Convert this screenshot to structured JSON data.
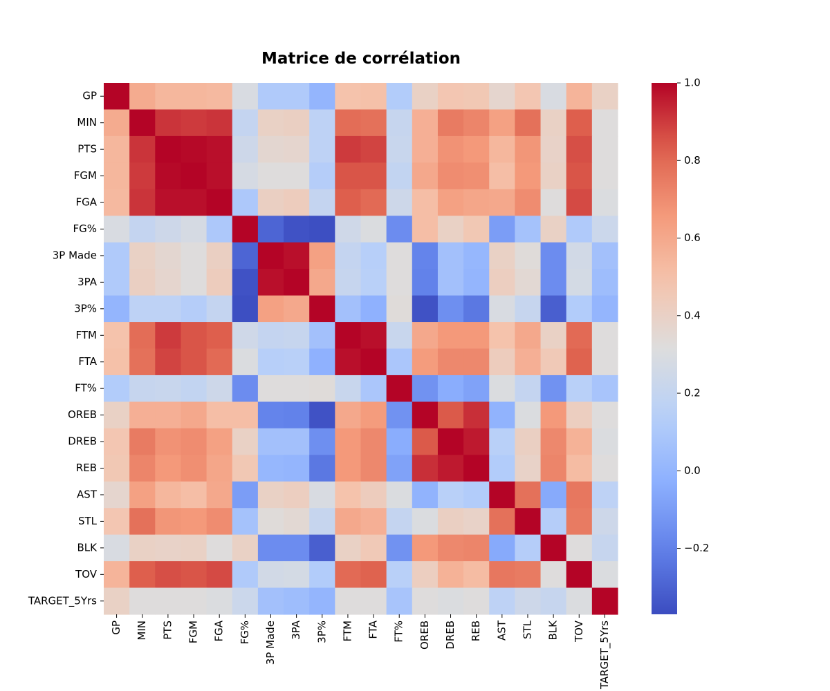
{
  "chart_data": {
    "type": "heatmap",
    "title": "Matrice de corrélation",
    "xlabel": "",
    "ylabel": "",
    "variables": [
      "GP",
      "MIN",
      "PTS",
      "FGM",
      "FGA",
      "FG%",
      "3P Made",
      "3PA",
      "3P%",
      "FTM",
      "FTA",
      "FT%",
      "OREB",
      "DREB",
      "REB",
      "AST",
      "STL",
      "BLK",
      "TOV",
      "TARGET_5Yrs"
    ],
    "colormap": "coolwarm",
    "colorbar": {
      "vmin": -0.37,
      "vmax": 1.0,
      "ticks": [
        -0.2,
        0.0,
        0.2,
        0.4,
        0.6,
        0.8,
        1.0
      ],
      "tick_labels": [
        "−0.2",
        "0.0",
        "0.2",
        "0.4",
        "0.6",
        "0.8",
        "1.0"
      ]
    },
    "values": [
      [
        1.0,
        0.59,
        0.54,
        0.54,
        0.53,
        0.29,
        0.11,
        0.11,
        0.0,
        0.49,
        0.5,
        0.12,
        0.4,
        0.47,
        0.46,
        0.37,
        0.47,
        0.29,
        0.55,
        0.4
      ],
      [
        0.59,
        1.0,
        0.91,
        0.9,
        0.91,
        0.2,
        0.4,
        0.41,
        0.17,
        0.79,
        0.78,
        0.21,
        0.57,
        0.75,
        0.72,
        0.63,
        0.78,
        0.4,
        0.83,
        0.32
      ],
      [
        0.54,
        0.91,
        1.0,
        0.99,
        0.98,
        0.24,
        0.36,
        0.37,
        0.17,
        0.9,
        0.88,
        0.22,
        0.57,
        0.68,
        0.66,
        0.54,
        0.67,
        0.39,
        0.86,
        0.32
      ],
      [
        0.54,
        0.9,
        0.99,
        1.0,
        0.98,
        0.28,
        0.32,
        0.32,
        0.13,
        0.85,
        0.85,
        0.19,
        0.6,
        0.7,
        0.69,
        0.51,
        0.66,
        0.4,
        0.85,
        0.32
      ],
      [
        0.53,
        0.91,
        0.98,
        0.98,
        1.0,
        0.1,
        0.41,
        0.43,
        0.2,
        0.83,
        0.8,
        0.24,
        0.51,
        0.63,
        0.61,
        0.6,
        0.7,
        0.32,
        0.87,
        0.3
      ],
      [
        0.29,
        0.2,
        0.24,
        0.28,
        0.1,
        1.0,
        -0.29,
        -0.35,
        -0.36,
        0.25,
        0.3,
        -0.16,
        0.51,
        0.4,
        0.46,
        -0.1,
        0.07,
        0.4,
        0.11,
        0.23
      ],
      [
        0.11,
        0.4,
        0.36,
        0.32,
        0.41,
        -0.29,
        1.0,
        0.98,
        0.63,
        0.2,
        0.14,
        0.32,
        -0.19,
        0.06,
        0.01,
        0.4,
        0.33,
        -0.16,
        0.26,
        0.06
      ],
      [
        0.11,
        0.41,
        0.37,
        0.32,
        0.43,
        -0.35,
        0.98,
        1.0,
        0.6,
        0.21,
        0.15,
        0.32,
        -0.2,
        0.06,
        0.0,
        0.42,
        0.35,
        -0.16,
        0.27,
        0.04
      ],
      [
        0.0,
        0.17,
        0.17,
        0.13,
        0.2,
        -0.36,
        0.63,
        0.6,
        1.0,
        0.06,
        -0.02,
        0.33,
        -0.35,
        -0.15,
        -0.23,
        0.29,
        0.21,
        -0.31,
        0.12,
        0.0
      ],
      [
        0.49,
        0.79,
        0.9,
        0.85,
        0.83,
        0.25,
        0.2,
        0.21,
        0.06,
        1.0,
        0.98,
        0.22,
        0.6,
        0.66,
        0.66,
        0.49,
        0.6,
        0.4,
        0.8,
        0.32
      ],
      [
        0.5,
        0.78,
        0.88,
        0.85,
        0.8,
        0.3,
        0.14,
        0.15,
        -0.02,
        0.98,
        1.0,
        0.09,
        0.65,
        0.71,
        0.71,
        0.43,
        0.57,
        0.45,
        0.82,
        0.32
      ],
      [
        0.12,
        0.21,
        0.22,
        0.19,
        0.24,
        -0.16,
        0.32,
        0.32,
        0.33,
        0.22,
        0.09,
        1.0,
        -0.14,
        -0.04,
        -0.08,
        0.3,
        0.2,
        -0.14,
        0.15,
        0.08
      ],
      [
        0.4,
        0.57,
        0.57,
        0.6,
        0.51,
        0.51,
        -0.19,
        -0.2,
        -0.35,
        0.6,
        0.65,
        -0.14,
        1.0,
        0.84,
        0.92,
        -0.01,
        0.3,
        0.66,
        0.42,
        0.32
      ],
      [
        0.47,
        0.75,
        0.68,
        0.7,
        0.63,
        0.4,
        0.06,
        0.06,
        -0.15,
        0.66,
        0.71,
        -0.04,
        0.84,
        1.0,
        0.96,
        0.15,
        0.41,
        0.71,
        0.56,
        0.3
      ],
      [
        0.46,
        0.72,
        0.66,
        0.69,
        0.61,
        0.46,
        0.01,
        0.0,
        -0.23,
        0.66,
        0.71,
        -0.08,
        0.92,
        0.96,
        1.0,
        0.12,
        0.39,
        0.72,
        0.52,
        0.32
      ],
      [
        0.37,
        0.63,
        0.54,
        0.51,
        0.6,
        -0.1,
        0.4,
        0.42,
        0.29,
        0.49,
        0.43,
        0.3,
        -0.01,
        0.15,
        0.12,
        1.0,
        0.78,
        -0.05,
        0.76,
        0.17
      ],
      [
        0.47,
        0.78,
        0.67,
        0.66,
        0.7,
        0.07,
        0.33,
        0.35,
        0.21,
        0.6,
        0.57,
        0.2,
        0.3,
        0.41,
        0.39,
        0.78,
        1.0,
        0.13,
        0.75,
        0.24
      ],
      [
        0.29,
        0.4,
        0.39,
        0.4,
        0.32,
        0.4,
        -0.16,
        -0.16,
        -0.31,
        0.4,
        0.45,
        -0.14,
        0.66,
        0.71,
        0.72,
        -0.05,
        0.13,
        1.0,
        0.32,
        0.21
      ],
      [
        0.55,
        0.83,
        0.86,
        0.85,
        0.87,
        0.11,
        0.26,
        0.27,
        0.12,
        0.8,
        0.82,
        0.15,
        0.42,
        0.56,
        0.52,
        0.76,
        0.75,
        0.32,
        1.0,
        0.3
      ],
      [
        0.4,
        0.32,
        0.32,
        0.32,
        0.3,
        0.23,
        0.06,
        0.04,
        0.0,
        0.32,
        0.32,
        0.08,
        0.32,
        0.3,
        0.32,
        0.17,
        0.24,
        0.21,
        0.3,
        1.0
      ]
    ]
  }
}
